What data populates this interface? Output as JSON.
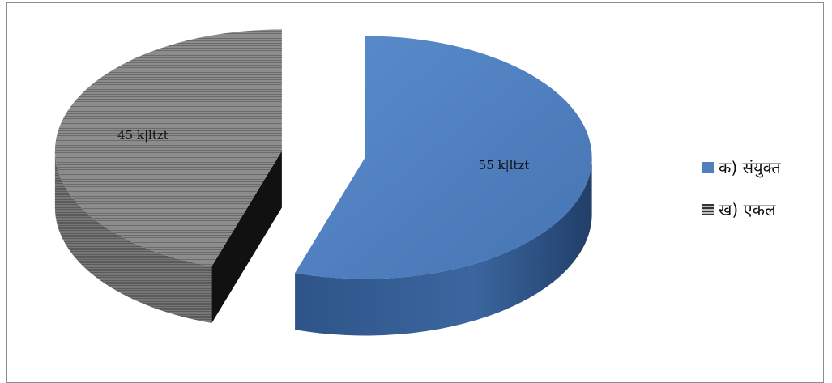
{
  "chart_data": {
    "type": "pie",
    "style": "3d-exploded",
    "title": "",
    "categories": [
      "क) संयुक्त",
      "ख) एकल"
    ],
    "values": [
      55,
      45
    ],
    "data_labels": [
      "55 k|ltzt",
      "45 k|ltzt"
    ],
    "colors": [
      "#4f7fbf",
      "#8a8a8a"
    ],
    "legend": {
      "position": "right",
      "items": [
        "क) संयुक्त",
        "ख) एकल"
      ]
    }
  }
}
